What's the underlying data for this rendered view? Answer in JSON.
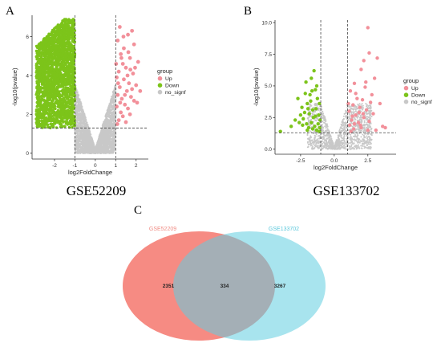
{
  "panels": {
    "a": "A",
    "b": "B",
    "c": "C"
  },
  "captions": {
    "a": "GSE52209",
    "b": "GSE133702"
  },
  "colors": {
    "up": "#f2909a",
    "down": "#7cc41a",
    "no_signf": "#c8c8c8",
    "venn_left": "#f5857c",
    "venn_right": "#60cde0",
    "venn_left_label": "#f08c84",
    "venn_right_label": "#5cc8dc"
  },
  "chart_data": [
    {
      "type": "scatter",
      "title": "",
      "caption": "GSE52209",
      "xlabel": "log2FoldChange",
      "ylabel": "-log10(pvalue)",
      "xlim": [
        -3.1,
        2.6
      ],
      "ylim": [
        -0.3,
        7.1
      ],
      "xticks": [
        -2,
        -1,
        0,
        1,
        2
      ],
      "yticks": [
        0,
        2,
        4,
        6
      ],
      "thresholds": {
        "x": [
          -1,
          1
        ],
        "y": 1.3
      },
      "grid": false,
      "legend": {
        "title": "group",
        "position": "right",
        "entries": [
          "Up",
          "Down",
          "no_signf"
        ]
      },
      "series": [
        {
          "name": "Up",
          "color": "#f2909a",
          "points": [
            [
              1.2,
              6.5
            ],
            [
              1.6,
              6.1
            ],
            [
              1.8,
              6.3
            ],
            [
              1.1,
              5.8
            ],
            [
              1.9,
              5.6
            ],
            [
              1.4,
              5.4
            ],
            [
              1.25,
              5.1
            ],
            [
              1.7,
              4.9
            ],
            [
              2.1,
              4.7
            ],
            [
              1.35,
              4.6
            ],
            [
              1.5,
              4.4
            ],
            [
              1.15,
              4.2
            ],
            [
              1.85,
              4.1
            ],
            [
              1.05,
              3.9
            ],
            [
              1.4,
              3.8
            ],
            [
              1.65,
              3.6
            ],
            [
              2.0,
              3.5
            ],
            [
              1.2,
              3.4
            ],
            [
              1.55,
              3.2
            ],
            [
              1.1,
              3.0
            ],
            [
              1.75,
              2.9
            ],
            [
              1.3,
              2.8
            ],
            [
              1.9,
              2.7
            ],
            [
              1.45,
              2.5
            ],
            [
              1.05,
              2.4
            ],
            [
              1.6,
              2.3
            ],
            [
              1.25,
              2.1
            ],
            [
              2.2,
              3.2
            ],
            [
              1.35,
              1.9
            ],
            [
              1.15,
              1.7
            ],
            [
              1.5,
              1.6
            ],
            [
              1.08,
              1.5
            ],
            [
              1.7,
              2.0
            ],
            [
              1.95,
              4.4
            ],
            [
              1.28,
              4.9
            ],
            [
              1.62,
              5.2
            ],
            [
              1.12,
              3.6
            ],
            [
              1.45,
              3.0
            ],
            [
              1.8,
              3.3
            ],
            [
              1.22,
              2.6
            ],
            [
              1.58,
              4.0
            ],
            [
              2.05,
              2.6
            ],
            [
              1.38,
              6.0
            ],
            [
              1.02,
              4.6
            ],
            [
              1.72,
              4.3
            ]
          ]
        },
        {
          "name": "Down",
          "color": "#7cc41a",
          "density": 2200,
          "x_range": [
            -2.9,
            -1.0
          ],
          "y_range": [
            1.3,
            6.9
          ]
        },
        {
          "name": "no_signf",
          "color": "#c8c8c8",
          "density": 3000,
          "x_range": [
            -1.0,
            1.0
          ],
          "y_range": [
            0.0,
            5.0
          ]
        }
      ]
    },
    {
      "type": "scatter",
      "title": "",
      "caption": "GSE133702",
      "xlabel": "log2FoldChange",
      "ylabel": "-log10(pvalue)",
      "xlim": [
        -4.4,
        4.6
      ],
      "ylim": [
        -0.4,
        10.2
      ],
      "xticks": [
        -2.5,
        0.0,
        2.5
      ],
      "xtick_labels": [
        "-2.5",
        "0.0",
        "2.5"
      ],
      "yticks": [
        0.0,
        2.5,
        5.0,
        7.5,
        10.0
      ],
      "ytick_labels": [
        "0.0",
        "2.5",
        "5.0",
        "7.5",
        "10.0"
      ],
      "thresholds": {
        "x": [
          -1,
          1
        ],
        "y": 1.3
      },
      "grid": false,
      "legend": {
        "title": "group",
        "position": "right",
        "entries": [
          "Up",
          "Down",
          "no_signf"
        ]
      },
      "series": [
        {
          "name": "Up",
          "color": "#f2909a",
          "points": [
            [
              2.5,
              9.6
            ],
            [
              3.2,
              7.2
            ],
            [
              2.2,
              7.0
            ],
            [
              2.6,
              7.6
            ],
            [
              2.0,
              6.3
            ],
            [
              3.0,
              5.6
            ],
            [
              1.5,
              5.2
            ],
            [
              2.3,
              4.9
            ],
            [
              1.2,
              4.6
            ],
            [
              2.8,
              4.3
            ],
            [
              1.7,
              4.0
            ],
            [
              2.1,
              3.9
            ],
            [
              3.4,
              3.6
            ],
            [
              1.4,
              3.5
            ],
            [
              1.9,
              3.3
            ],
            [
              2.4,
              3.1
            ],
            [
              1.1,
              3.0
            ],
            [
              2.9,
              2.8
            ],
            [
              1.6,
              2.7
            ],
            [
              2.2,
              2.5
            ],
            [
              1.3,
              2.3
            ],
            [
              2.6,
              2.2
            ],
            [
              1.8,
              2.1
            ],
            [
              3.6,
              1.8
            ],
            [
              1.15,
              1.9
            ],
            [
              2.0,
              1.7
            ],
            [
              1.45,
              1.6
            ],
            [
              3.1,
              1.5
            ],
            [
              2.5,
              1.5
            ],
            [
              1.25,
              1.4
            ],
            [
              3.8,
              1.7
            ],
            [
              1.6,
              4.4
            ],
            [
              2.7,
              3.7
            ],
            [
              1.35,
              2.6
            ],
            [
              1.95,
              1.9
            ],
            [
              2.35,
              5.3
            ],
            [
              1.05,
              3.6
            ],
            [
              1.85,
              2.9
            ],
            [
              1.5,
              2.0
            ],
            [
              2.15,
              2.8
            ]
          ]
        },
        {
          "name": "Down",
          "color": "#7cc41a",
          "points": [
            [
              -1.5,
              6.2
            ],
            [
              -2.1,
              5.3
            ],
            [
              -1.3,
              5.0
            ],
            [
              -2.7,
              4.0
            ],
            [
              -1.8,
              4.3
            ],
            [
              -2.4,
              3.3
            ],
            [
              -1.1,
              3.6
            ],
            [
              -1.6,
              3.1
            ],
            [
              -2.0,
              3.6
            ],
            [
              -3.2,
              1.8
            ],
            [
              -1.4,
              2.6
            ],
            [
              -2.3,
              2.4
            ],
            [
              -1.7,
              2.1
            ],
            [
              -1.2,
              2.0
            ],
            [
              -2.6,
              2.1
            ],
            [
              -1.9,
              1.7
            ],
            [
              -1.3,
              1.5
            ],
            [
              -2.0,
              1.5
            ],
            [
              -4.0,
              1.4
            ],
            [
              -1.1,
              1.4
            ],
            [
              -1.55,
              2.5
            ],
            [
              -2.2,
              2.9
            ],
            [
              -1.35,
              3.2
            ],
            [
              -1.75,
              3.8
            ],
            [
              -2.5,
              2.7
            ],
            [
              -1.05,
              2.3
            ],
            [
              -1.45,
              1.8
            ],
            [
              -2.9,
              2.3
            ],
            [
              -1.65,
              4.6
            ],
            [
              -1.25,
              4.0
            ],
            [
              -2.05,
              2.0
            ],
            [
              -1.85,
              2.8
            ],
            [
              -1.15,
              2.7
            ],
            [
              -1.6,
              1.6
            ],
            [
              -2.35,
              1.9
            ],
            [
              -1.4,
              4.7
            ],
            [
              -2.15,
              4.4
            ],
            [
              -1.7,
              5.6
            ],
            [
              -1.95,
              3.2
            ],
            [
              -1.08,
              1.7
            ]
          ]
        },
        {
          "name": "no_signf",
          "color": "#c8c8c8",
          "density": 1400,
          "x_range": [
            -2.0,
            2.8
          ],
          "y_range": [
            0.0,
            3.6
          ]
        }
      ]
    },
    {
      "type": "venn",
      "title": "",
      "sets": [
        {
          "name": "GSE52209",
          "only": 2351,
          "color": "#f5857c"
        },
        {
          "name": "GSE133702",
          "only": 3267,
          "color": "#60cde0"
        }
      ],
      "intersection": 334
    }
  ]
}
